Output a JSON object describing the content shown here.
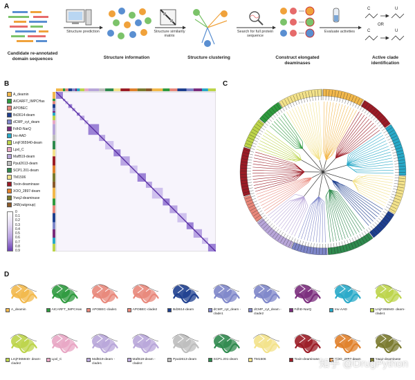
{
  "panels": {
    "a": "A",
    "b": "B",
    "c": "C",
    "d": "D"
  },
  "workflow": {
    "steps": [
      "Candidate re-annotated domain sequences",
      "Structure information",
      "Structure clustering",
      "Construct elongated deaminases",
      "Active clade identification"
    ],
    "arrows": [
      "Structure prediction",
      "Structure similarity matrix",
      "Search for full protein sequence",
      "Evaluate activities"
    ],
    "reaction": {
      "c_label": "C",
      "u_label": "U",
      "or_label": "OR"
    }
  },
  "legend_b": [
    {
      "label": "A_deamin",
      "color": "#f2b84b"
    },
    {
      "label": "AICARFT_IMPCHas",
      "color": "#2e9a3e"
    },
    {
      "label": "APOBEC",
      "color": "#e8877a"
    },
    {
      "label": "Bd3614-deam",
      "color": "#1e3f8f"
    },
    {
      "label": "dCMP_cyt_deam",
      "color": "#7e86c9"
    },
    {
      "label": "FdhD-NarQ",
      "color": "#7a2c7c"
    },
    {
      "label": "Inv-AAD",
      "color": "#28a9c8"
    },
    {
      "label": "LmjF365940-deam",
      "color": "#bcd44a"
    },
    {
      "label": "Lpxl_C",
      "color": "#e8a6c4"
    },
    {
      "label": "MafB19-deam",
      "color": "#b8a6d9"
    },
    {
      "label": "Pput2613-deam",
      "color": "#bdbdbd"
    },
    {
      "label": "SCP1.201-deam",
      "color": "#2f8a4e"
    },
    {
      "label": "TM1506",
      "color": "#f3e28a"
    },
    {
      "label": "Toxin-deaminase",
      "color": "#9b1c26"
    },
    {
      "label": "XOO_2897-deam",
      "color": "#e0802a"
    },
    {
      "label": "YwqJ-deaminase",
      "color": "#7a7a2e"
    },
    {
      "label": "JAB(outgroup)",
      "color": "#8b5a2b"
    }
  ],
  "colorbar": {
    "ticks": [
      "0",
      "0.1",
      "0.2",
      "0.3",
      "0.4",
      "0.5",
      "0.6",
      "0.7",
      "0.8",
      "0.9"
    ],
    "low_color": "#ffffff",
    "high_color": "#6a3fb3"
  },
  "proteins_row1": [
    {
      "label": "A_deamin",
      "color": "#f2b84b"
    },
    {
      "label": "AICARFT_IMPCHas",
      "color": "#2e9a3e"
    },
    {
      "label": "APOBEC-clade1",
      "color": "#e8877a"
    },
    {
      "label": "APOBEC-clade2",
      "color": "#e8877a"
    },
    {
      "label": "Bd3614-deam",
      "color": "#1e3f8f"
    },
    {
      "label": "dCMP_cyt_deam -clade1",
      "color": "#7e86c9"
    },
    {
      "label": "dCMP_cyt_deam -clade2",
      "color": "#7e86c9"
    },
    {
      "label": "FdhD-NarQ",
      "color": "#7a2c7c"
    },
    {
      "label": "Inv-AAD",
      "color": "#28a9c8"
    },
    {
      "label": "LmjF365940- deam-clade1",
      "color": "#bcd44a"
    }
  ],
  "proteins_row2": [
    {
      "label": "LmjF365940- deam-clade2",
      "color": "#bcd44a"
    },
    {
      "label": "Lpxl_C",
      "color": "#e8a6c4"
    },
    {
      "label": "MafB19-deam -clade1",
      "color": "#b8a6d9"
    },
    {
      "label": "MafB19-deam -clade2",
      "color": "#b8a6d9"
    },
    {
      "label": "Pput2613-deam",
      "color": "#bdbdbd"
    },
    {
      "label": "SCP1.201-deam",
      "color": "#2f8a4e"
    },
    {
      "label": "TM1506",
      "color": "#f3e28a"
    },
    {
      "label": "Toxin-deaminase",
      "color": "#9b1c26"
    },
    {
      "label": "XOO_2897-deam",
      "color": "#e0802a"
    },
    {
      "label": "YwqJ-deaminase",
      "color": "#7a7a2e"
    }
  ],
  "watermark": "知乎 @DrugPython"
}
